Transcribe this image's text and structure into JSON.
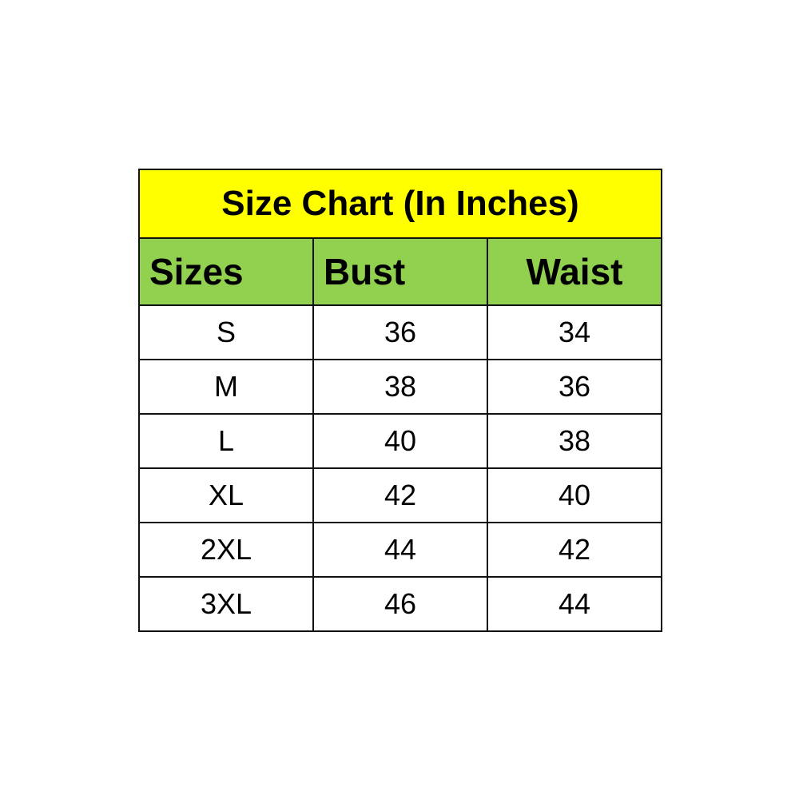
{
  "title": "Size Chart (In Inches)",
  "colors": {
    "title_bg": "#FFFF00",
    "header_bg": "#92D050"
  },
  "headers": [
    "Sizes",
    "Bust",
    "Waist"
  ],
  "rows": [
    [
      "S",
      "36",
      "34"
    ],
    [
      "M",
      "38",
      "36"
    ],
    [
      "L",
      "40",
      "38"
    ],
    [
      "XL",
      "42",
      "40"
    ],
    [
      "2XL",
      "44",
      "42"
    ],
    [
      "3XL",
      "46",
      "44"
    ]
  ]
}
